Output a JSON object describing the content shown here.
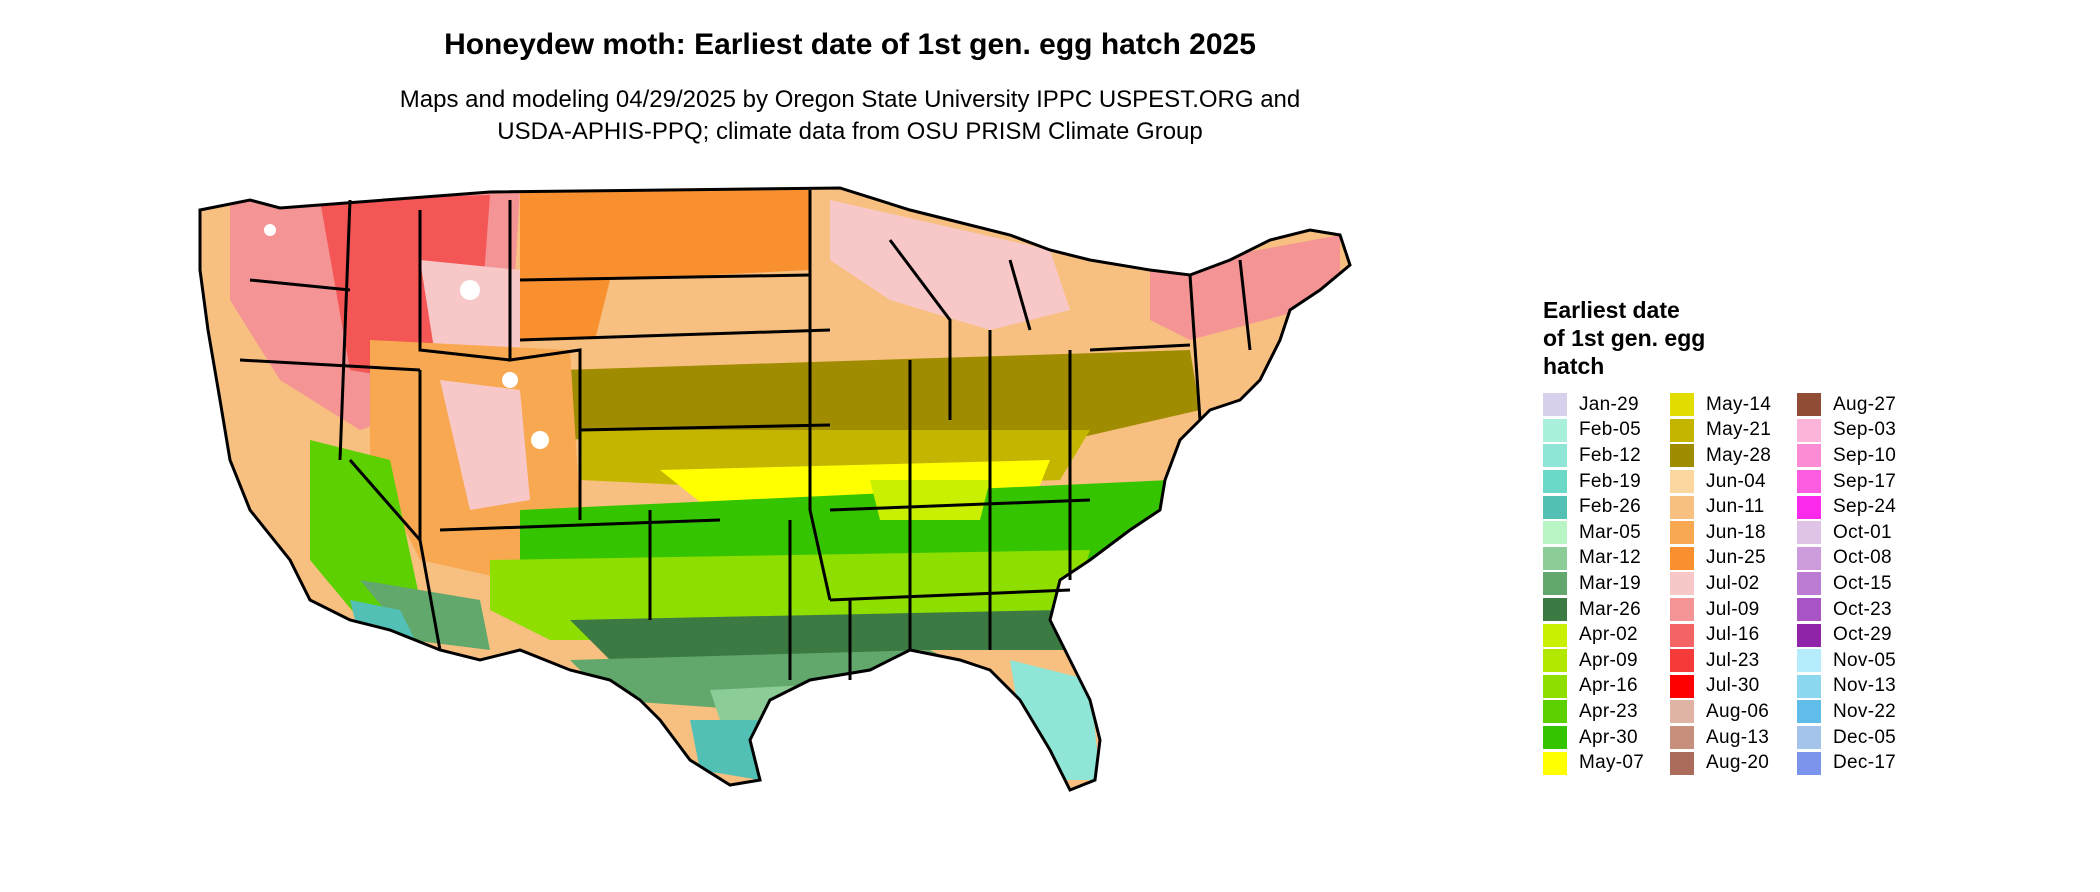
{
  "title": "Honeydew moth: Earliest date of 1st gen. egg hatch 2025",
  "subtitle": [
    "Maps and modeling 04/29/2025 by Oregon State University IPPC USPEST.ORG and",
    "USDA-APHIS-PPQ; climate data from OSU PRISM Climate Group"
  ],
  "legend": {
    "title": [
      "Earliest date",
      "of 1st gen. egg",
      "hatch"
    ],
    "columns": [
      [
        {
          "label": "Jan-29",
          "color": "#d8d0ec"
        },
        {
          "label": "Feb-05",
          "color": "#a8f0dc"
        },
        {
          "label": "Feb-12",
          "color": "#8fe6d6"
        },
        {
          "label": "Feb-19",
          "color": "#6cd8c8"
        },
        {
          "label": "Feb-26",
          "color": "#52c0b4"
        },
        {
          "label": "Mar-05",
          "color": "#b8f4c4"
        },
        {
          "label": "Mar-12",
          "color": "#8ccc96"
        },
        {
          "label": "Mar-19",
          "color": "#62a86c"
        },
        {
          "label": "Mar-26",
          "color": "#3c7a44"
        },
        {
          "label": "Apr-02",
          "color": "#c8f000"
        },
        {
          "label": "Apr-09",
          "color": "#b2e800"
        },
        {
          "label": "Apr-16",
          "color": "#8ede00"
        },
        {
          "label": "Apr-23",
          "color": "#5cd000"
        },
        {
          "label": "Apr-30",
          "color": "#34c400"
        },
        {
          "label": "May-07",
          "color": "#ffff00"
        }
      ],
      [
        {
          "label": "May-14",
          "color": "#e2dc00"
        },
        {
          "label": "May-21",
          "color": "#c4b600"
        },
        {
          "label": "May-28",
          "color": "#a08c00"
        },
        {
          "label": "Jun-04",
          "color": "#fcd8a0"
        },
        {
          "label": "Jun-11",
          "color": "#f8c080"
        },
        {
          "label": "Jun-18",
          "color": "#f8a850"
        },
        {
          "label": "Jun-25",
          "color": "#f89030"
        },
        {
          "label": "Jul-02",
          "color": "#f8c8c8"
        },
        {
          "label": "Jul-09",
          "color": "#f49494"
        },
        {
          "label": "Jul-16",
          "color": "#f46464"
        },
        {
          "label": "Jul-23",
          "color": "#f43a3a"
        },
        {
          "label": "Jul-30",
          "color": "#ff0000"
        },
        {
          "label": "Aug-06",
          "color": "#e0b4a4"
        },
        {
          "label": "Aug-13",
          "color": "#c8907c"
        },
        {
          "label": "Aug-20",
          "color": "#ac6c5c"
        }
      ],
      [
        {
          "label": "Aug-27",
          "color": "#904c34"
        },
        {
          "label": "Sep-03",
          "color": "#fcb4d8"
        },
        {
          "label": "Sep-10",
          "color": "#fc8cd4"
        },
        {
          "label": "Sep-17",
          "color": "#fc5ce0"
        },
        {
          "label": "Sep-24",
          "color": "#fc28ec"
        },
        {
          "label": "Oct-01",
          "color": "#e0c4e8"
        },
        {
          "label": "Oct-08",
          "color": "#cc9cdc"
        },
        {
          "label": "Oct-15",
          "color": "#bc7cd4"
        },
        {
          "label": "Oct-23",
          "color": "#a854c4"
        },
        {
          "label": "Oct-29",
          "color": "#9024a8"
        },
        {
          "label": "Nov-05",
          "color": "#b4ecfc"
        },
        {
          "label": "Nov-13",
          "color": "#8cd8f0"
        },
        {
          "label": "Nov-22",
          "color": "#60bce8"
        },
        {
          "label": "Dec-05",
          "color": "#a4c4ec"
        },
        {
          "label": "Dec-17",
          "color": "#7c94ec"
        }
      ]
    ]
  }
}
